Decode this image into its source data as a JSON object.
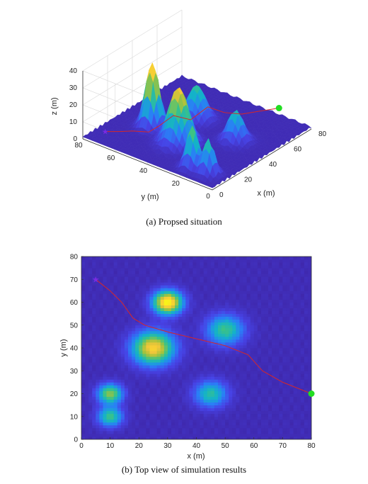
{
  "chart_data": [
    {
      "type": "surface",
      "caption": "(a) Propsed situation",
      "xlabel": "x (m)",
      "ylabel": "y (m)",
      "zlabel": "z (m)",
      "xlim": [
        0,
        80
      ],
      "ylim": [
        0,
        80
      ],
      "zlim": [
        0,
        40
      ],
      "xticks": [
        0,
        20,
        40,
        60,
        80
      ],
      "yticks": [
        0,
        20,
        40,
        60,
        80
      ],
      "zticks": [
        0,
        10,
        20,
        30,
        40
      ],
      "grid": true,
      "peaks": [
        {
          "x": 30,
          "y": 60,
          "height": 38,
          "sigma": 3.5
        },
        {
          "x": 25,
          "y": 40,
          "height": 33,
          "sigma": 5
        },
        {
          "x": 50,
          "y": 48,
          "height": 20,
          "sigma": 4.5
        },
        {
          "x": 45,
          "y": 20,
          "height": 18,
          "sigma": 4
        },
        {
          "x": 10,
          "y": 20,
          "height": 25,
          "sigma": 3
        },
        {
          "x": 10,
          "y": 10,
          "height": 20,
          "sigma": 3
        }
      ],
      "base_height": 2,
      "path": [
        {
          "x": 5,
          "y": 70
        },
        {
          "x": 10,
          "y": 65
        },
        {
          "x": 14,
          "y": 60
        },
        {
          "x": 18,
          "y": 53
        },
        {
          "x": 22,
          "y": 50
        },
        {
          "x": 30,
          "y": 47
        },
        {
          "x": 40,
          "y": 44
        },
        {
          "x": 50,
          "y": 41
        },
        {
          "x": 58,
          "y": 37
        },
        {
          "x": 63,
          "y": 30
        },
        {
          "x": 70,
          "y": 25
        },
        {
          "x": 80,
          "y": 20
        }
      ],
      "path_color": "#d62728",
      "start": {
        "x": 5,
        "y": 70,
        "marker": "star",
        "color": "#7a2be2"
      },
      "goal": {
        "x": 80,
        "y": 20,
        "marker": "circle",
        "color": "#22dd22"
      }
    },
    {
      "type": "heatmap",
      "caption": "(b) Top view of simulation results",
      "xlabel": "x (m)",
      "ylabel": "y (m)",
      "xlim": [
        0,
        80
      ],
      "ylim": [
        0,
        80
      ],
      "xticks": [
        0,
        10,
        20,
        30,
        40,
        50,
        60,
        70,
        80
      ],
      "yticks": [
        0,
        10,
        20,
        30,
        40,
        50,
        60,
        70,
        80
      ],
      "colormap": [
        "#3e26a8",
        "#4743e6",
        "#2a7ef7",
        "#14b2c9",
        "#3cc385",
        "#a8c23b",
        "#f7c63a",
        "#f9f21a"
      ]
    }
  ]
}
